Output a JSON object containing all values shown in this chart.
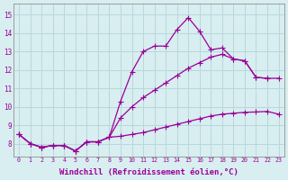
{
  "background_color": "#d8eef0",
  "grid_color": "#b8d8dc",
  "line_color": "#990099",
  "xlabel": "Windchill (Refroidissement éolien,°C)",
  "xlabel_fontsize": 6.5,
  "ylabel_values": [
    8,
    9,
    10,
    11,
    12,
    13,
    14,
    15
  ],
  "xlim": [
    -0.5,
    23.5
  ],
  "ylim": [
    7.3,
    15.6
  ],
  "xtick_labels": [
    "0",
    "1",
    "2",
    "3",
    "4",
    "5",
    "6",
    "7",
    "8",
    "9",
    "10",
    "11",
    "12",
    "13",
    "14",
    "15",
    "16",
    "17",
    "18",
    "19",
    "20",
    "21",
    "22",
    "23"
  ],
  "curve1_x": [
    0,
    1,
    2,
    3,
    4,
    5,
    6,
    7,
    8,
    9,
    10,
    11,
    12,
    13,
    14,
    15,
    16,
    17,
    18,
    19,
    20,
    21,
    22
  ],
  "curve1_y": [
    8.5,
    8.0,
    7.8,
    7.9,
    7.9,
    7.6,
    8.1,
    8.1,
    8.35,
    10.3,
    11.9,
    13.0,
    13.3,
    13.3,
    14.2,
    14.85,
    14.1,
    13.1,
    13.2,
    12.6,
    12.5,
    11.6,
    11.55
  ],
  "curve2_x": [
    0,
    1,
    2,
    3,
    4,
    5,
    6,
    7,
    8,
    9,
    10,
    11,
    12,
    13,
    14,
    15,
    16,
    17,
    18,
    19,
    20,
    21,
    22,
    23
  ],
  "curve2_y": [
    8.5,
    8.0,
    7.8,
    7.9,
    7.9,
    7.6,
    8.1,
    8.1,
    8.35,
    9.4,
    10.0,
    10.5,
    10.9,
    11.3,
    11.7,
    12.1,
    12.4,
    12.7,
    12.85,
    12.6,
    12.5,
    11.6,
    11.55,
    11.55
  ],
  "curve3_x": [
    0,
    1,
    2,
    3,
    4,
    5,
    6,
    7,
    8,
    9,
    10,
    11,
    12,
    13,
    14,
    15,
    16,
    17,
    18,
    19,
    20,
    21,
    22,
    23
  ],
  "curve3_y": [
    8.5,
    8.0,
    7.8,
    7.9,
    7.9,
    7.6,
    8.1,
    8.1,
    8.35,
    8.4,
    8.5,
    8.6,
    8.75,
    8.9,
    9.05,
    9.2,
    9.35,
    9.5,
    9.6,
    9.65,
    9.7,
    9.72,
    9.75,
    9.6
  ]
}
